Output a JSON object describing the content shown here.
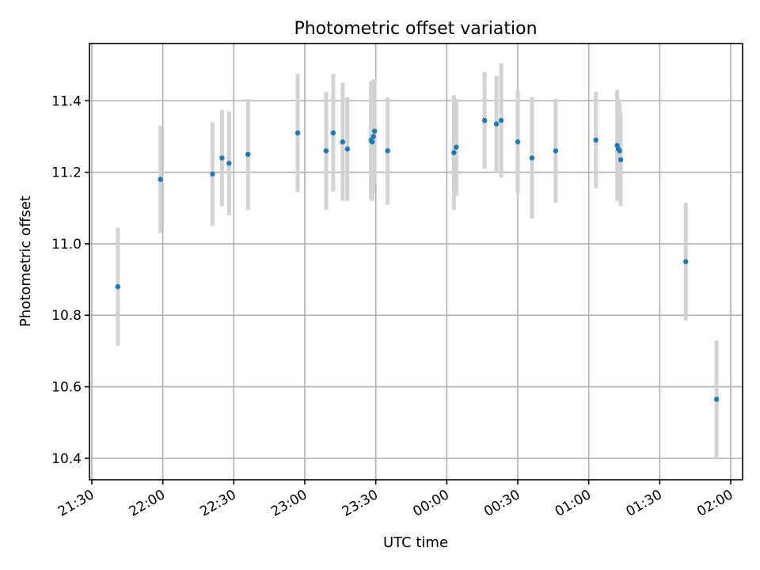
{
  "chart_data": {
    "type": "scatter",
    "title": "Photometric offset variation",
    "xlabel": "UTC time",
    "ylabel": "Photometric offset",
    "grid": true,
    "legend": "none",
    "colors": {
      "points": "#1f77b4",
      "errorbars": "#d3d3d3",
      "grid": "#b0b0b0"
    },
    "xlim": [
      "21:29",
      "02:05"
    ],
    "ylim": [
      10.34,
      11.56
    ],
    "x_ticks": [
      "21:30",
      "22:00",
      "22:30",
      "23:00",
      "23:30",
      "00:00",
      "00:30",
      "01:00",
      "01:30",
      "02:00"
    ],
    "y_ticks": [
      "10.4",
      "10.6",
      "10.8",
      "11.0",
      "11.2",
      "11.4"
    ],
    "series": [
      {
        "marker": "point",
        "points": [
          {
            "x": "21:41",
            "y": 10.88,
            "err": 0.165
          },
          {
            "x": "21:59",
            "y": 11.18,
            "err": 0.15
          },
          {
            "x": "22:21",
            "y": 11.195,
            "err": 0.145
          },
          {
            "x": "22:25",
            "y": 11.24,
            "err": 0.135
          },
          {
            "x": "22:28",
            "y": 11.225,
            "err": 0.145
          },
          {
            "x": "22:36",
            "y": 11.25,
            "err": 0.155
          },
          {
            "x": "22:57",
            "y": 11.31,
            "err": 0.165
          },
          {
            "x": "23:09",
            "y": 11.26,
            "err": 0.165
          },
          {
            "x": "23:12",
            "y": 11.31,
            "err": 0.165
          },
          {
            "x": "23:16",
            "y": 11.285,
            "err": 0.165
          },
          {
            "x": "23:18",
            "y": 11.265,
            "err": 0.145
          },
          {
            "x": "23:28",
            "y": 11.29,
            "err": 0.165
          },
          {
            "x": "23:28.5",
            "y": 11.285,
            "err": 0.165
          },
          {
            "x": "23:29",
            "y": 11.3,
            "err": 0.16
          },
          {
            "x": "23:29.5",
            "y": 11.315,
            "err": 0.145
          },
          {
            "x": "23:35",
            "y": 11.26,
            "err": 0.15
          },
          {
            "x": "00:03",
            "y": 11.255,
            "err": 0.16
          },
          {
            "x": "00:04",
            "y": 11.27,
            "err": 0.135
          },
          {
            "x": "00:16",
            "y": 11.345,
            "err": 0.135
          },
          {
            "x": "00:21",
            "y": 11.335,
            "err": 0.135
          },
          {
            "x": "00:23",
            "y": 11.345,
            "err": 0.16
          },
          {
            "x": "00:30",
            "y": 11.285,
            "err": 0.145
          },
          {
            "x": "00:36",
            "y": 11.24,
            "err": 0.17
          },
          {
            "x": "00:46",
            "y": 11.26,
            "err": 0.145
          },
          {
            "x": "01:03",
            "y": 11.29,
            "err": 0.135
          },
          {
            "x": "01:12",
            "y": 11.275,
            "err": 0.155
          },
          {
            "x": "01:12.5",
            "y": 11.265,
            "err": 0.14
          },
          {
            "x": "01:13",
            "y": 11.26,
            "err": 0.135
          },
          {
            "x": "01:13.5",
            "y": 11.235,
            "err": 0.13
          },
          {
            "x": "01:41",
            "y": 10.95,
            "err": 0.165
          },
          {
            "x": "01:54",
            "y": 10.565,
            "err": 0.165
          }
        ]
      }
    ]
  }
}
